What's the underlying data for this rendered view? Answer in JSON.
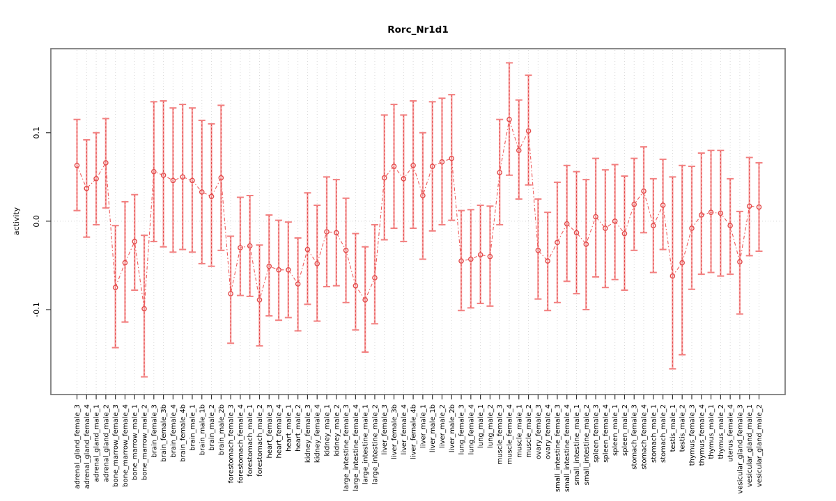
{
  "chart_data": {
    "type": "line",
    "subtype": "points-with-error-bars",
    "title": "Rorc_Nr1d1",
    "xlabel": "",
    "ylabel": "activity",
    "ylim": [
      -0.196,
      0.195
    ],
    "yticks": [
      0.1,
      0.0,
      -0.1
    ],
    "ytick_labels": [
      "0.1",
      "0.0",
      "-0.1"
    ],
    "grid": "vertical dotted gridline at every category plus dotted zero line",
    "legend_position": "none",
    "marker": "open-circle",
    "categories": [
      "adrenal_gland_female_3",
      "adrenal_gland_female_4",
      "adrenal_gland_male_1",
      "adrenal_gland_male_2",
      "bone_marrow_female_3",
      "bone_marrow_female_4",
      "bone_marrow_male_1",
      "bone_marrow_male_2",
      "brain_female_3",
      "brain_female_3b",
      "brain_female_4",
      "brain_female_4b",
      "brain_male_1",
      "brain_male_1b",
      "brain_male_2",
      "brain_male_2b",
      "forestomach_female_3",
      "forestomach_female_4",
      "forestomach_male_1",
      "forestomach_male_2",
      "heart_female_3",
      "heart_female_4",
      "heart_male_1",
      "heart_male_2",
      "kidney_female_3",
      "kidney_female_4",
      "kidney_male_1",
      "kidney_male_2",
      "large_intestine_female_3",
      "large_intestine_female_4",
      "large_intestine_male_1",
      "large_intestine_male_2",
      "liver_female_3",
      "liver_female_3b",
      "liver_female_4",
      "liver_female_4b",
      "liver_male_1",
      "liver_male_1b",
      "liver_male_2",
      "liver_male_2b",
      "lung_female_3",
      "lung_female_4",
      "lung_male_1",
      "lung_male_2",
      "muscle_female_3",
      "muscle_female_4",
      "muscle_male_1",
      "muscle_male_2",
      "ovary_female_3",
      "ovary_female_4",
      "small_intestine_female_3",
      "small_intestine_female_4",
      "small_intestine_male_1",
      "small_intestine_male_2",
      "spleen_female_3",
      "spleen_female_4",
      "spleen_male_1",
      "spleen_male_2",
      "stomach_female_3",
      "stomach_female_4",
      "stomach_male_1",
      "stomach_male_2",
      "testis_male_1",
      "testis_male_2",
      "thymus_female_3",
      "thymus_female_4",
      "thymus_male_1",
      "thymus_male_2",
      "uterus_female_4",
      "vesicular_gland_female_3",
      "vesicular_gland_male_1",
      "vesicular_gland_male_2"
    ],
    "values": [
      0.063,
      0.037,
      0.048,
      0.066,
      -0.075,
      -0.047,
      -0.023,
      -0.099,
      0.056,
      0.052,
      0.046,
      0.05,
      0.046,
      0.033,
      0.028,
      0.049,
      -0.082,
      -0.03,
      -0.028,
      -0.089,
      -0.051,
      -0.055,
      -0.055,
      -0.071,
      -0.032,
      -0.048,
      -0.012,
      -0.013,
      -0.033,
      -0.073,
      -0.089,
      -0.064,
      0.049,
      0.062,
      0.048,
      0.063,
      0.029,
      0.062,
      0.067,
      0.071,
      -0.045,
      -0.043,
      -0.038,
      -0.04,
      0.055,
      0.115,
      0.08,
      0.102,
      -0.033,
      -0.045,
      -0.024,
      -0.003,
      -0.013,
      -0.026,
      0.005,
      -0.008,
      0.0,
      -0.014,
      0.019,
      0.034,
      -0.005,
      0.018,
      -0.062,
      -0.047,
      -0.008,
      0.007,
      0.01,
      0.009,
      -0.005,
      -0.046,
      0.017,
      0.016
    ],
    "ci_low": [
      0.012,
      -0.018,
      -0.004,
      0.015,
      -0.143,
      -0.114,
      -0.078,
      -0.176,
      -0.023,
      -0.029,
      -0.035,
      -0.032,
      -0.035,
      -0.048,
      -0.051,
      -0.033,
      -0.138,
      -0.084,
      -0.085,
      -0.141,
      -0.107,
      -0.112,
      -0.109,
      -0.124,
      -0.094,
      -0.113,
      -0.074,
      -0.073,
      -0.092,
      -0.123,
      -0.148,
      -0.116,
      -0.021,
      -0.008,
      -0.023,
      -0.008,
      -0.043,
      -0.011,
      -0.004,
      0.001,
      -0.101,
      -0.098,
      -0.093,
      -0.096,
      -0.004,
      0.052,
      0.025,
      0.041,
      -0.088,
      -0.101,
      -0.092,
      -0.068,
      -0.082,
      -0.1,
      -0.063,
      -0.075,
      -0.066,
      -0.078,
      -0.033,
      -0.013,
      -0.058,
      -0.032,
      -0.167,
      -0.151,
      -0.077,
      -0.06,
      -0.058,
      -0.062,
      -0.06,
      -0.105,
      -0.039,
      -0.034
    ],
    "ci_high": [
      0.115,
      0.092,
      0.1,
      0.116,
      -0.005,
      0.022,
      0.03,
      -0.016,
      0.135,
      0.136,
      0.128,
      0.132,
      0.128,
      0.114,
      0.11,
      0.131,
      -0.017,
      0.027,
      0.029,
      -0.027,
      0.007,
      0.001,
      -0.001,
      -0.019,
      0.032,
      0.018,
      0.05,
      0.047,
      0.026,
      -0.014,
      -0.029,
      -0.004,
      0.12,
      0.132,
      0.12,
      0.136,
      0.1,
      0.135,
      0.139,
      0.143,
      0.012,
      0.013,
      0.018,
      0.017,
      0.115,
      0.179,
      0.137,
      0.165,
      0.025,
      0.01,
      0.044,
      0.063,
      0.056,
      0.047,
      0.071,
      0.058,
      0.064,
      0.051,
      0.071,
      0.084,
      0.048,
      0.07,
      0.05,
      0.063,
      0.062,
      0.077,
      0.08,
      0.08,
      0.048,
      0.011,
      0.072,
      0.066
    ],
    "colors": {
      "point": "#e34b4b",
      "whisker_solid": "#f7a2a2",
      "whisker_dash": "#e04545",
      "cap": "#f28080",
      "connector": "#ee5a5a",
      "gridline": "#d8d8d8",
      "axis_box": "#757575",
      "tick": "#333333",
      "text": "#000000"
    }
  }
}
